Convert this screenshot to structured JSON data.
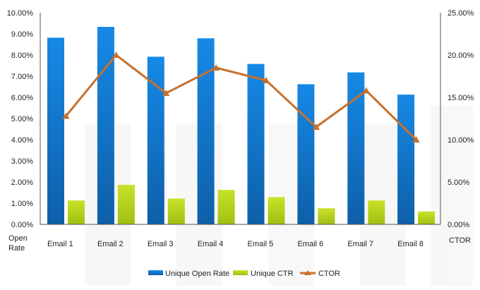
{
  "chart_data": {
    "type": "bar",
    "categories": [
      "Email 1",
      "Email 2",
      "Email 3",
      "Email 4",
      "Email 5",
      "Email 6",
      "Email 7",
      "Email 8"
    ],
    "series": [
      {
        "name": "Unique Open Rate",
        "kind": "bar",
        "axis": "left",
        "color": "#1a86d8",
        "values": [
          8.82,
          9.33,
          7.92,
          8.79,
          7.58,
          6.62,
          7.18,
          6.13
        ]
      },
      {
        "name": "Unique CTR",
        "kind": "bar",
        "axis": "left",
        "color": "#b9d61f",
        "values": [
          1.13,
          1.87,
          1.22,
          1.63,
          1.29,
          0.76,
          1.13,
          0.61
        ]
      },
      {
        "name": "CTOR",
        "kind": "line",
        "axis": "right",
        "color": "#c8702c",
        "marker": "triangle",
        "values": [
          12.8,
          20.0,
          15.5,
          18.5,
          17.0,
          11.5,
          15.8,
          10.0
        ]
      }
    ],
    "y_left": {
      "label": "Open Rate",
      "ylim": [
        0,
        10
      ],
      "ticks": [
        "0.00%",
        "1.00%",
        "2.00%",
        "3.00%",
        "4.00%",
        "5.00%",
        "6.00%",
        "7.00%",
        "8.00%",
        "9.00%",
        "10.00%"
      ]
    },
    "y_right": {
      "label": "CTOR",
      "ylim": [
        0,
        25
      ],
      "ticks": [
        "0.00%",
        "5.00%",
        "10.00%",
        "15.00%",
        "20.00%",
        "25.00%"
      ]
    },
    "grid": false,
    "legend_position": "bottom"
  }
}
